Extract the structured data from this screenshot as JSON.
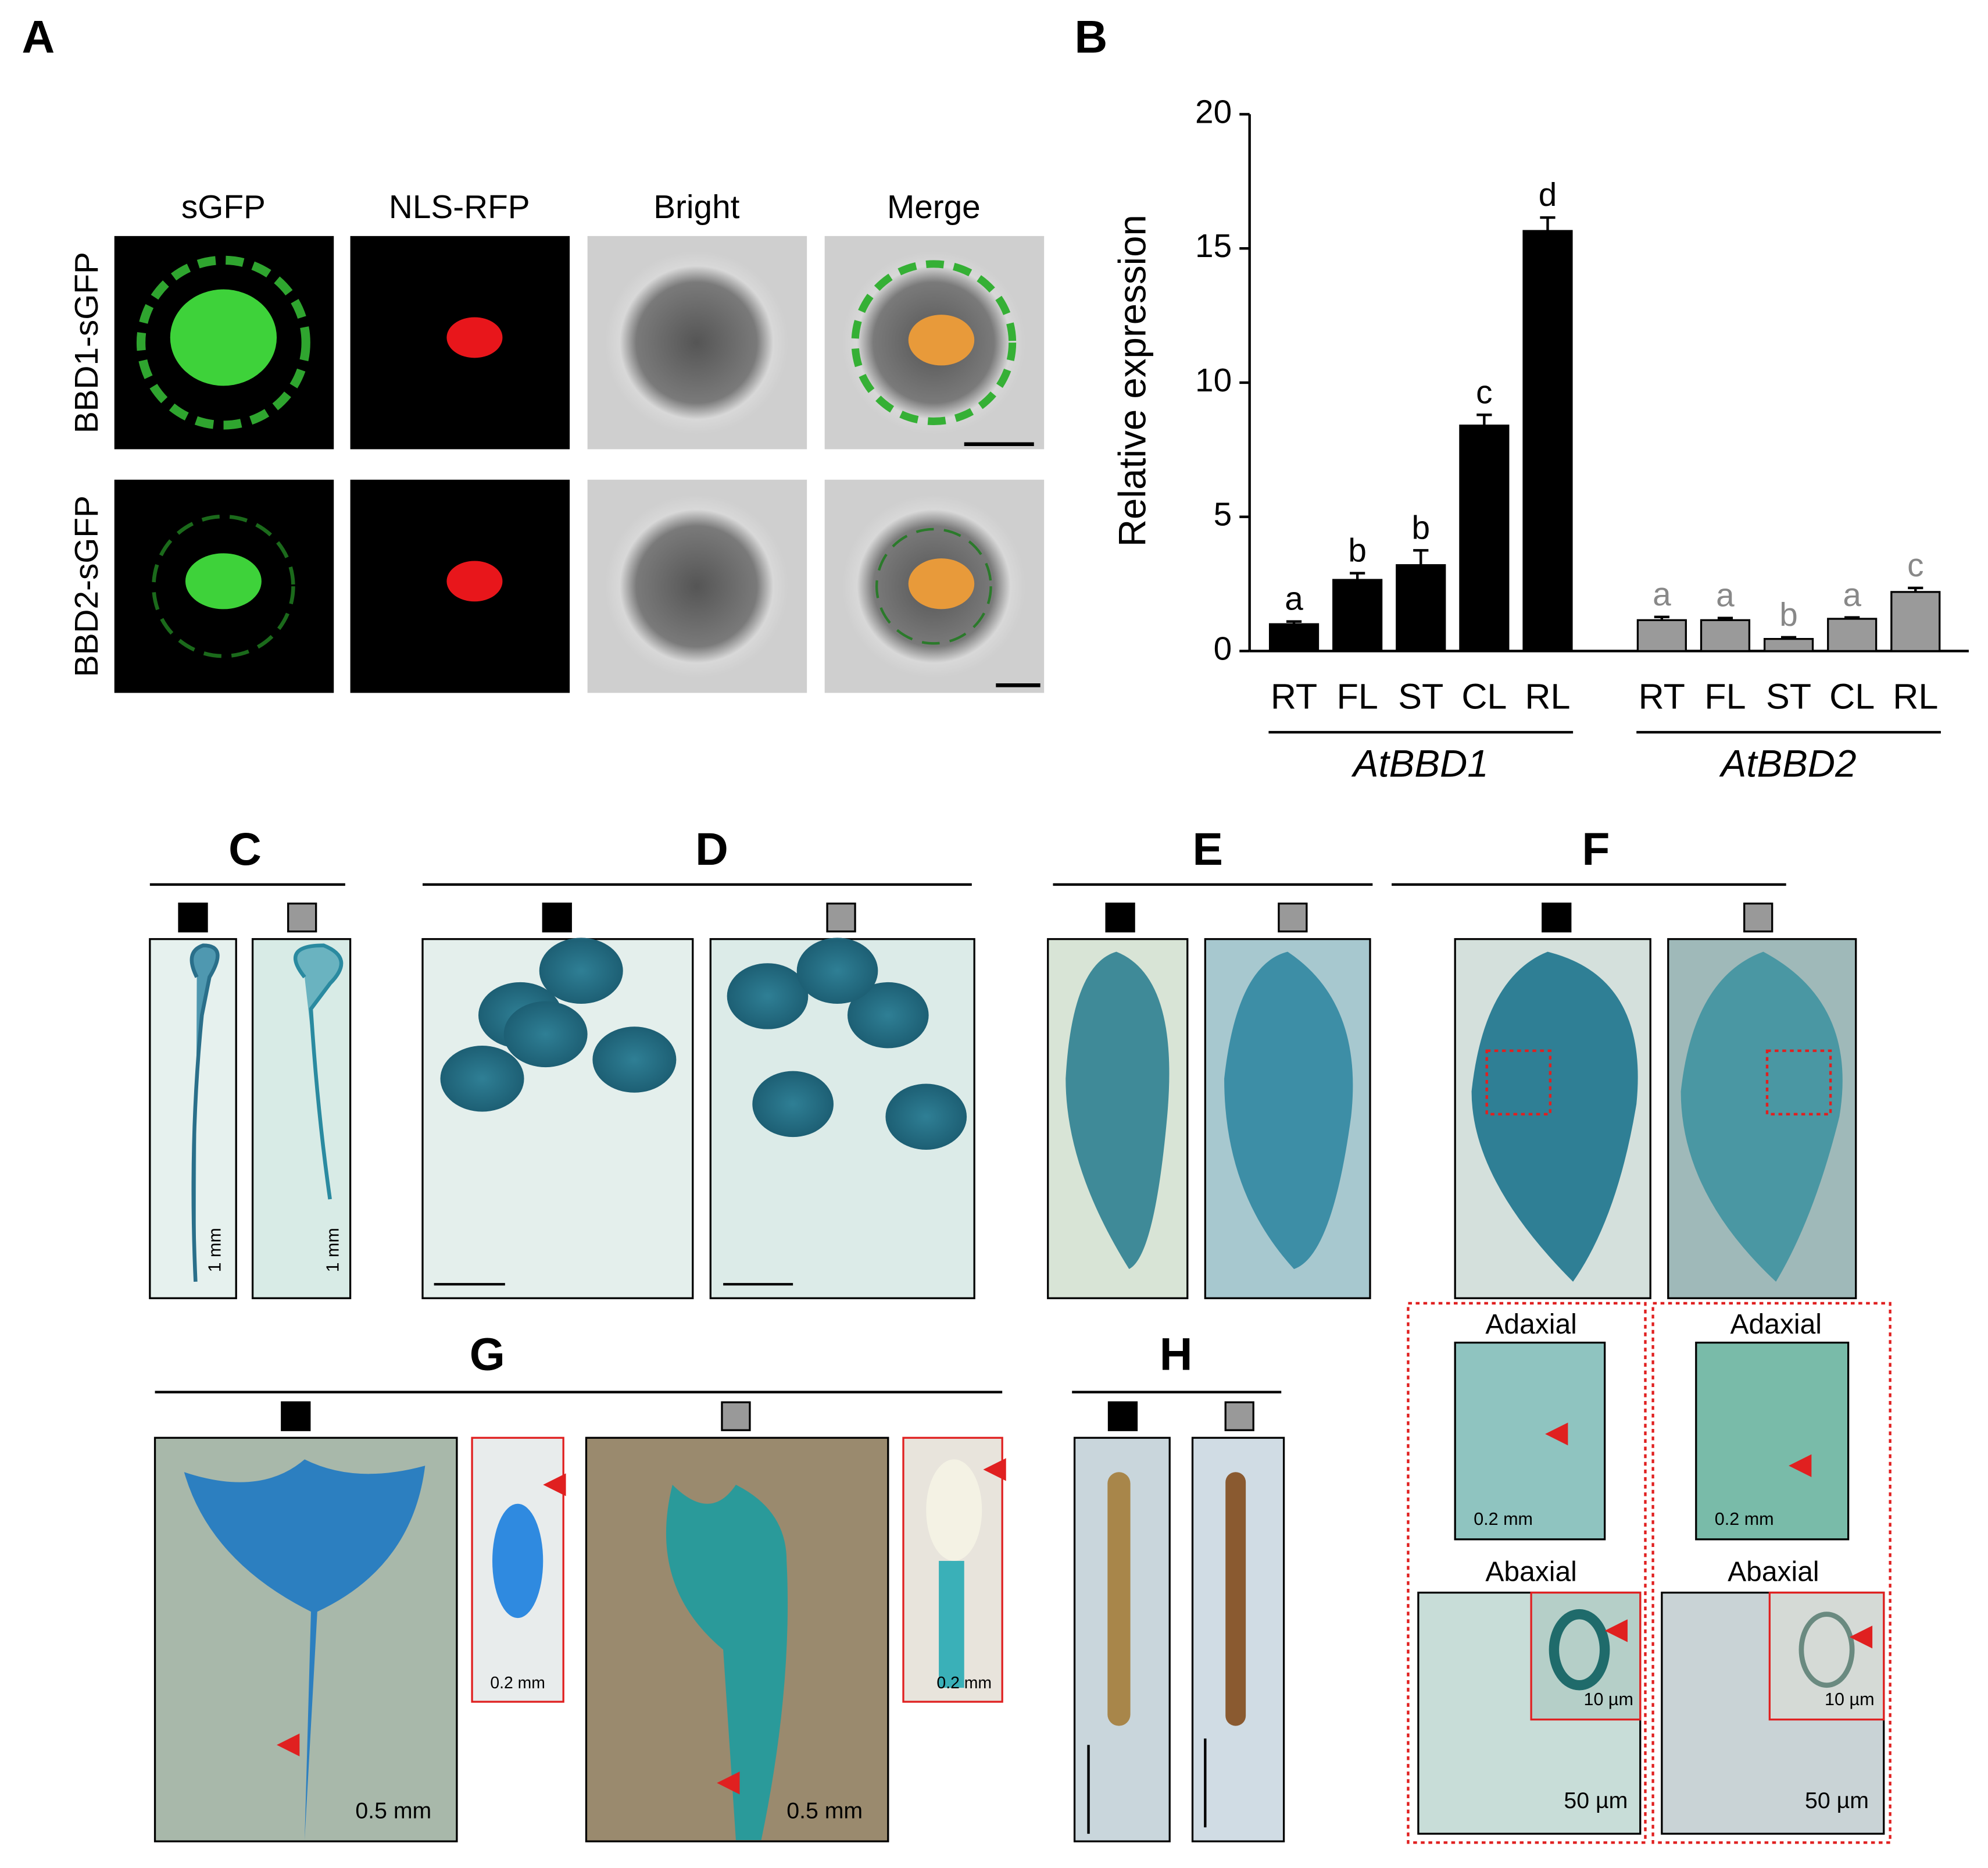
{
  "chart_data": {
    "type": "bar",
    "y_label": "Relative expression",
    "categories": [
      "RT",
      "FL",
      "ST",
      "CL",
      "RL"
    ],
    "series": [
      {
        "name": "AtBBD1",
        "color": "#000000",
        "values": [
          1.0,
          2.65,
          3.2,
          8.4,
          15.65
        ],
        "errors": [
          0.1,
          0.25,
          0.55,
          0.4,
          0.5
        ],
        "letters": [
          "a",
          "b",
          "b",
          "c",
          "d"
        ]
      },
      {
        "name": "AtBBD2",
        "color": "#9a9a9a",
        "values": [
          1.15,
          1.15,
          0.45,
          1.2,
          2.2
        ],
        "errors": [
          0.12,
          0.08,
          0.06,
          0.05,
          0.15
        ],
        "letters": [
          "a",
          "a",
          "b",
          "a",
          "c"
        ]
      }
    ],
    "ylim": [
      0,
      20
    ],
    "yticks": [
      0,
      5,
      10,
      15,
      20
    ]
  },
  "panels": {
    "A": {
      "label": "A",
      "columns": [
        "sGFP",
        "NLS-RFP",
        "Bright",
        "Merge"
      ],
      "rows": [
        "BBD1-sGFP",
        "BBD2-sGFP"
      ]
    },
    "B": {
      "label": "B"
    },
    "C": {
      "label": "C",
      "scales": [
        "1 mm",
        "1 mm"
      ]
    },
    "D": {
      "label": "D"
    },
    "E": {
      "label": "E"
    },
    "F": {
      "label": "F",
      "insets": [
        "Adaxial",
        "Adaxial",
        "Abaxial",
        "Abaxial"
      ],
      "scales": [
        "0.2 mm",
        "0.2 mm",
        "10 µm",
        "10 µm",
        "50 µm",
        "50 µm"
      ]
    },
    "G": {
      "label": "G",
      "scales": [
        "0.2 mm",
        "0.5 mm",
        "0.2 mm",
        "0.5 mm"
      ]
    },
    "H": {
      "label": "H"
    }
  }
}
